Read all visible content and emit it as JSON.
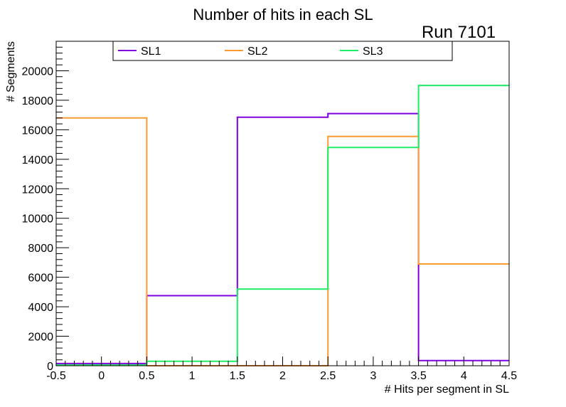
{
  "chart_data": {
    "type": "histogram-step",
    "title": "Number of hits in each SL",
    "run_label": "Run 7101",
    "xlabel": "# Hits per segment in SL",
    "ylabel": "# Segments",
    "xlim": [
      -0.5,
      4.5
    ],
    "ylim": [
      0,
      22000
    ],
    "x_ticks": [
      "-0.5",
      "0",
      "0.5",
      "1",
      "1.5",
      "2",
      "2.5",
      "3",
      "3.5",
      "4",
      "4.5"
    ],
    "y_ticks": [
      "0",
      "2000",
      "4000",
      "6000",
      "8000",
      "10000",
      "12000",
      "14000",
      "16000",
      "18000",
      "20000"
    ],
    "bin_edges": [
      -0.5,
      0.5,
      1.5,
      2.5,
      3.5,
      4.5
    ],
    "series": [
      {
        "name": "SL1",
        "color": "#8000e0",
        "values": [
          150,
          4750,
          16850,
          17100,
          350
        ]
      },
      {
        "name": "SL2",
        "color": "#ff9a33",
        "values": [
          16800,
          0,
          0,
          15550,
          6900
        ]
      },
      {
        "name": "SL3",
        "color": "#1aee66",
        "values": [
          50,
          300,
          5200,
          14800,
          19000
        ]
      }
    ]
  }
}
